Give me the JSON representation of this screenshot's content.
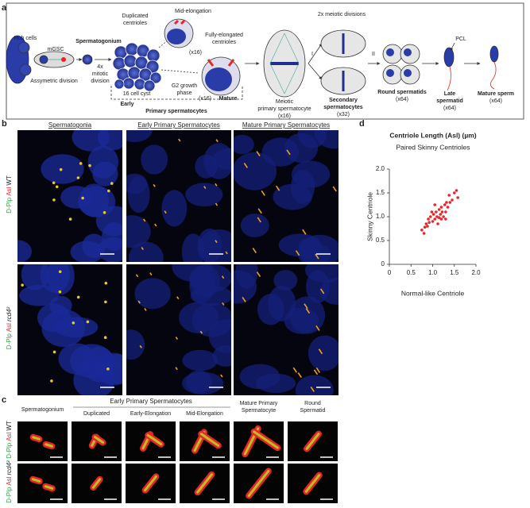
{
  "figure": {
    "panel_labels": [
      "a",
      "b",
      "c",
      "d"
    ],
    "panel_a": {
      "hub_cells": "Hub cells",
      "mgsc": "mGSC",
      "asymmetric": "Assymetric division",
      "spermatogonium": "Spermatogonium",
      "mitotic": [
        "4x",
        "mitotic",
        "division"
      ],
      "duplicated": [
        "Duplicated",
        "centrioles"
      ],
      "cyst": "16 cell cyst",
      "early": "Early",
      "mid": "Mid-elongation",
      "mid_count": "(x16)",
      "fully": [
        "Fully-elongated",
        "centrioles"
      ],
      "g2": [
        "G2 growth",
        "phase"
      ],
      "mature_count": "(x16)",
      "mature": "Mature",
      "primary": "Primary spermatocytes",
      "meiotic": [
        "Meiotic",
        "primary spermatocyte",
        "(x16)"
      ],
      "meiotic_div": "2x meiotic divisions",
      "div_1": "I",
      "div_2": "II",
      "secondary": [
        "Secondary",
        "spermatocytes"
      ],
      "secondary_count": "(x32)",
      "round": "Round spermatids",
      "round_count": "(x64)",
      "pcl": "PCL",
      "late": [
        "Late",
        "spermatid"
      ],
      "late_count": "(x64)",
      "sperm": "Mature sperm",
      "sperm_count": "(x64)"
    },
    "panel_b": {
      "columns": [
        "Spermatogonia",
        "Early Primary Spermatocytes",
        "Mature Primary Spermatocytes"
      ],
      "rows": [
        {
          "marker_1": "D-Plp",
          "marker_2": "Asl",
          "genotype": "WT"
        },
        {
          "marker_1": "D-Plp",
          "marker_2": "Asl",
          "genotype": "rcd4²"
        }
      ]
    },
    "panel_c": {
      "group": "Early Primary Spermatocytes",
      "columns": [
        [
          "Spermatogonium"
        ],
        [
          "Duplicated"
        ],
        [
          "Early-Elongation"
        ],
        [
          "Mid-Elongation"
        ],
        [
          "Mature Primary",
          "Spermatocyte"
        ],
        [
          "Round",
          "Spermatid"
        ]
      ],
      "rows": [
        {
          "marker_1": "D-Plp",
          "marker_2": "Asl",
          "genotype": "WT"
        },
        {
          "marker_1": "D-Plp",
          "marker_2": "Asl",
          "genotype": "rcd4²"
        }
      ]
    }
  },
  "chart_data": {
    "type": "scatter",
    "title": "Centriole Length (Asl) (µm)",
    "subtitle": "Paired Skinny Centrioles",
    "xlabel": "Normal-like Centriole",
    "ylabel": "Skinny Centriole",
    "color": "#e8262a",
    "x": [
      0.75,
      0.8,
      0.82,
      0.85,
      0.88,
      0.9,
      0.92,
      0.95,
      1.0,
      1.02,
      1.05,
      1.08,
      1.1,
      1.12,
      1.15,
      1.18,
      1.2,
      1.2,
      1.22,
      1.25,
      1.28,
      1.3,
      1.32,
      1.35,
      1.38,
      1.4,
      1.45,
      1.5,
      1.55,
      1.58,
      1.3,
      1.15,
      1.05,
      0.98
    ],
    "values": [
      0.72,
      0.65,
      0.78,
      0.85,
      0.8,
      0.95,
      0.88,
      1.0,
      0.9,
      1.05,
      0.95,
      1.1,
      1.0,
      0.85,
      1.15,
      1.05,
      0.95,
      1.2,
      1.1,
      1.0,
      1.25,
      1.1,
      1.3,
      1.2,
      1.45,
      1.3,
      1.35,
      1.5,
      1.55,
      1.4,
      0.95,
      0.98,
      1.25,
      1.1
    ],
    "xlim": [
      0,
      2
    ],
    "ylim": [
      0,
      2
    ],
    "xticks": [
      0,
      0.5,
      {
        "value": 1,
        "label": "1.0"
      },
      1.5,
      {
        "value": 2,
        "label": "2.0"
      }
    ],
    "yticks": [
      0,
      0.5,
      {
        "value": 1,
        "label": "1.0"
      },
      1.5,
      {
        "value": 2,
        "label": "2.0"
      }
    ]
  }
}
